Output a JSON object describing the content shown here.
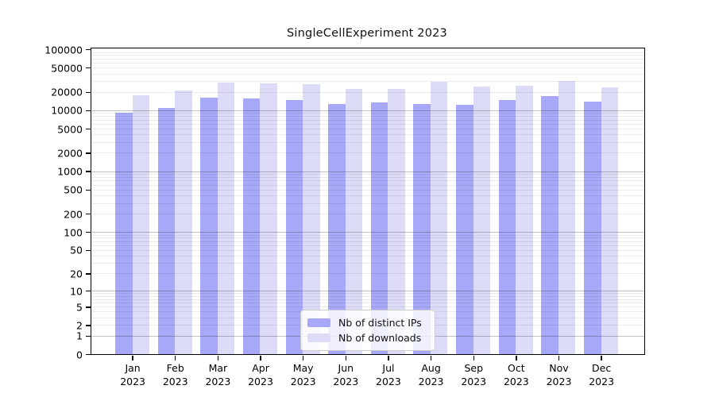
{
  "title": "SingleCellExperiment 2023",
  "colors": {
    "ips_bar": "#a8a8f8",
    "downloads_bar": "#dcdcf8",
    "grid_minor": "rgba(0,0,0,0.075)",
    "grid_decade": "rgba(0,0,0,0.24)",
    "axis": "#000000",
    "legend_border": "#cccccc"
  },
  "legend": {
    "items": [
      {
        "label": "Nb of distinct IPs",
        "color": "#a8a8f8"
      },
      {
        "label": "Nb of downloads",
        "color": "#dcdcf8"
      }
    ]
  },
  "chart_data": {
    "type": "bar",
    "title": "SingleCellExperiment 2023",
    "y_scale": "log10(1+x)",
    "ylim": [
      0,
      100000
    ],
    "y_tick_values": [
      100000,
      50000,
      20000,
      10000,
      5000,
      2000,
      1000,
      500,
      200,
      100,
      50,
      20,
      10,
      5,
      2,
      1,
      0
    ],
    "categories": [
      "Jan",
      "Feb",
      "Mar",
      "Apr",
      "May",
      "Jun",
      "Jul",
      "Aug",
      "Sep",
      "Oct",
      "Nov",
      "Dec"
    ],
    "x_tick_sublabel": "2023",
    "series": [
      {
        "name": "Nb of distinct IPs",
        "color": "#a8a8f8",
        "values": [
          9100,
          10900,
          16100,
          15700,
          14800,
          12800,
          13500,
          12500,
          12200,
          14500,
          17100,
          14000
        ]
      },
      {
        "name": "Nb of downloads",
        "color": "#dcdcf8",
        "values": [
          17600,
          20800,
          28600,
          27600,
          26900,
          22300,
          22500,
          29200,
          24300,
          25300,
          30600,
          23700
        ]
      }
    ],
    "legend_position": "bottom-center-inside",
    "grid": "log minor lines faint, decade lines darker, drawn over bars"
  }
}
